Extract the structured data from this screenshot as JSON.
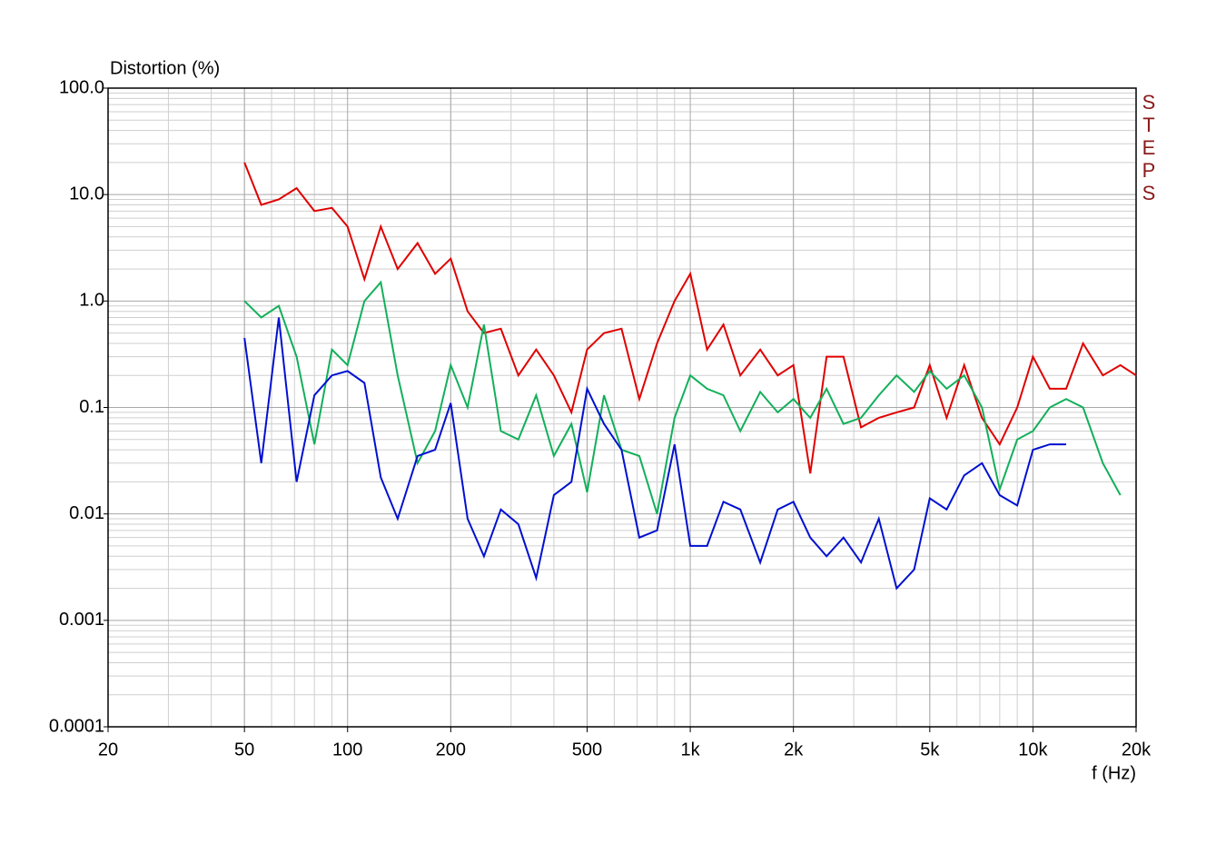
{
  "chart_data": {
    "type": "line",
    "y_label": "Distortion (%)",
    "x_label": "f (Hz)",
    "annotation": "STEPS",
    "x_log": true,
    "y_log": true,
    "grid": true,
    "minor_grid": true,
    "xlim": [
      20,
      20000
    ],
    "ylim": [
      0.0001,
      100
    ],
    "xticks": [
      20,
      50,
      100,
      200,
      500,
      {
        "value": 1000,
        "label": "1k"
      },
      {
        "value": 2000,
        "label": "2k"
      },
      {
        "value": 5000,
        "label": "5k"
      },
      {
        "value": 10000,
        "label": "10k"
      },
      {
        "value": 20000,
        "label": "20k"
      }
    ],
    "yticks": [
      {
        "value": 100,
        "label": "100.0"
      },
      {
        "value": 10,
        "label": "10.0"
      },
      {
        "value": 1,
        "label": "1.0"
      },
      0.1,
      0.01,
      0.001,
      0.0001
    ],
    "x": [
      50,
      56,
      63,
      71,
      80,
      90,
      100,
      112,
      125,
      140,
      160,
      180,
      200,
      224,
      250,
      280,
      315,
      355,
      400,
      450,
      500,
      560,
      630,
      710,
      800,
      900,
      1000,
      1120,
      1250,
      1400,
      1600,
      1800,
      2000,
      2240,
      2500,
      2800,
      3150,
      3550,
      4000,
      4500,
      5000,
      5600,
      6300,
      7100,
      8000,
      9000,
      10000,
      11200,
      12500,
      14000,
      16000,
      18000,
      20000
    ],
    "series": [
      {
        "color": "#e00000",
        "values": [
          20,
          8,
          9,
          11.5,
          7,
          7.5,
          5,
          1.6,
          5,
          2,
          3.5,
          1.8,
          2.5,
          0.8,
          0.5,
          0.55,
          0.2,
          0.35,
          0.2,
          0.09,
          0.35,
          0.5,
          0.55,
          0.12,
          0.4,
          1.0,
          1.8,
          0.35,
          0.6,
          0.2,
          0.35,
          0.2,
          0.25,
          0.024,
          0.3,
          0.3,
          0.065,
          0.08,
          0.09,
          0.1,
          0.25,
          0.08,
          0.25,
          0.08,
          0.045,
          0.1,
          0.3,
          0.15,
          0.15,
          0.4,
          0.2,
          0.25,
          0.2
        ]
      },
      {
        "color": "#12b05a",
        "values": [
          1.0,
          0.7,
          0.9,
          0.3,
          0.045,
          0.35,
          0.25,
          1.0,
          1.5,
          0.2,
          0.03,
          0.06,
          0.25,
          0.1,
          0.6,
          0.06,
          0.05,
          0.13,
          0.035,
          0.07,
          0.016,
          0.13,
          0.04,
          0.035,
          0.01,
          0.08,
          0.2,
          0.15,
          0.13,
          0.06,
          0.14,
          0.09,
          0.12,
          0.08,
          0.15,
          0.07,
          0.08,
          0.13,
          0.2,
          0.14,
          0.22,
          0.15,
          0.2,
          0.1,
          0.017,
          0.05,
          0.06,
          0.1,
          0.12,
          0.1,
          0.03,
          0.015,
          null
        ]
      },
      {
        "color": "#0010d0",
        "values": [
          0.45,
          0.03,
          0.7,
          0.02,
          0.13,
          0.2,
          0.22,
          0.17,
          0.022,
          0.009,
          0.035,
          0.04,
          0.11,
          0.009,
          0.004,
          0.011,
          0.008,
          0.0025,
          0.015,
          0.02,
          0.15,
          0.07,
          0.04,
          0.006,
          0.007,
          0.045,
          0.005,
          0.005,
          0.013,
          0.011,
          0.0035,
          0.011,
          0.013,
          0.006,
          0.004,
          0.006,
          0.0035,
          0.009,
          0.002,
          0.003,
          0.014,
          0.011,
          0.023,
          0.03,
          0.015,
          0.012,
          0.04,
          0.045,
          0.045,
          null,
          null,
          null,
          null
        ]
      }
    ]
  }
}
